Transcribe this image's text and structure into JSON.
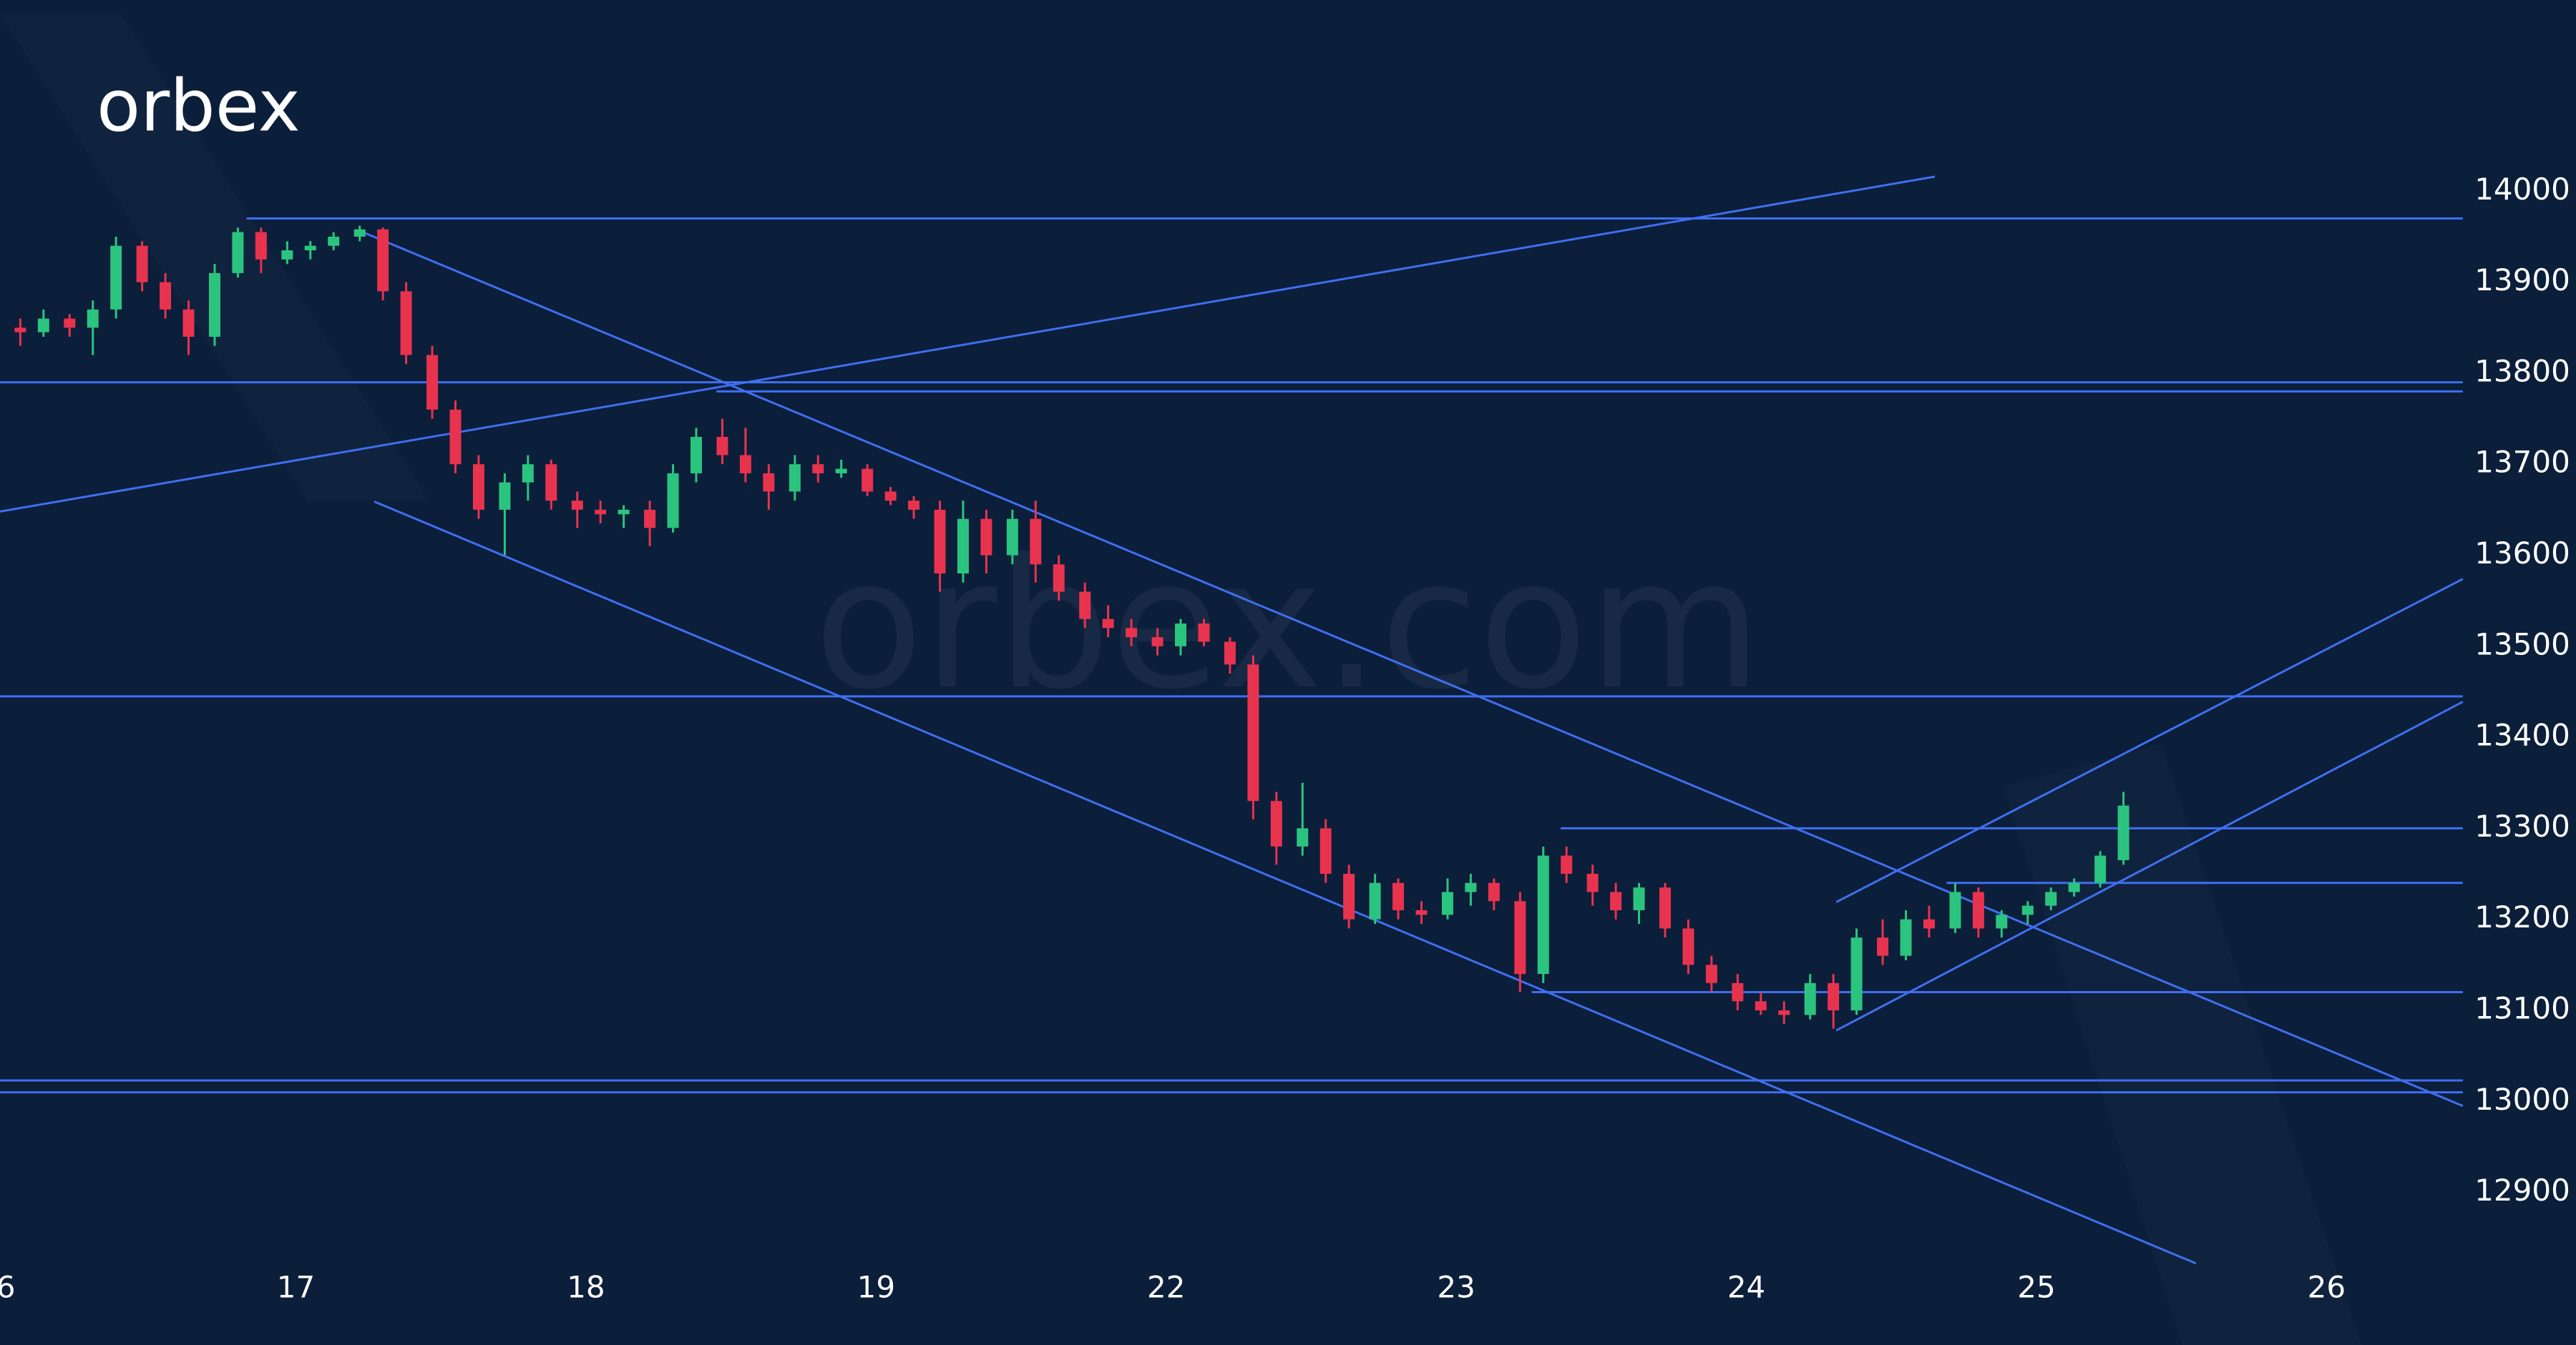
{
  "logo": "orbex",
  "watermark": "orbex.com",
  "chart_data": {
    "type": "candlestick",
    "up_color": "#2bc47f",
    "down_color": "#e8334f",
    "line_color": "#3f6ff0",
    "xlim": [
      -0.02,
      8.86
    ],
    "ylim": [
      12840,
      14210
    ],
    "xticks": [
      {
        "value": 0,
        "label": "6"
      },
      {
        "value": 1,
        "label": "17"
      },
      {
        "value": 2,
        "label": "18"
      },
      {
        "value": 3,
        "label": "19"
      },
      {
        "value": 4,
        "label": "22"
      },
      {
        "value": 5,
        "label": "23"
      },
      {
        "value": 6,
        "label": "24"
      },
      {
        "value": 7,
        "label": "25"
      },
      {
        "value": 8,
        "label": "26"
      }
    ],
    "yticks": [
      12900,
      13000,
      13100,
      13200,
      13300,
      13400,
      13500,
      13600,
      13700,
      13800,
      13900,
      14000
    ],
    "x": [
      0.05,
      0.13,
      0.22,
      0.3,
      0.38,
      0.47,
      0.55,
      0.63,
      0.72,
      0.8,
      0.88,
      0.97,
      1.05,
      1.13,
      1.22,
      1.3,
      1.38,
      1.47,
      1.55,
      1.63,
      1.72,
      1.8,
      1.88,
      1.97,
      2.05,
      2.13,
      2.22,
      2.3,
      2.38,
      2.47,
      2.55,
      2.63,
      2.72,
      2.8,
      2.88,
      2.97,
      3.05,
      3.13,
      3.22,
      3.3,
      3.38,
      3.47,
      3.55,
      3.63,
      3.72,
      3.8,
      3.88,
      3.97,
      4.05,
      4.13,
      4.22,
      4.3,
      4.38,
      4.47,
      4.55,
      4.63,
      4.72,
      4.8,
      4.88,
      4.97,
      5.05,
      5.13,
      5.22,
      5.3,
      5.38,
      5.47,
      5.55,
      5.63,
      5.72,
      5.8,
      5.88,
      5.97,
      6.05,
      6.13,
      6.22,
      6.3,
      6.38,
      6.47,
      6.55,
      6.63,
      6.72,
      6.8,
      6.88,
      6.97,
      7.05,
      7.13,
      7.22,
      7.3
    ],
    "open": [
      13850,
      13845,
      13860,
      13850,
      13870,
      13940,
      13900,
      13870,
      13840,
      13910,
      13955,
      13925,
      13935,
      13940,
      13950,
      13958,
      13890,
      13820,
      13760,
      13700,
      13650,
      13680,
      13700,
      13660,
      13650,
      13645,
      13650,
      13630,
      13690,
      13730,
      13710,
      13690,
      13670,
      13700,
      13690,
      13695,
      13670,
      13660,
      13650,
      13580,
      13640,
      13600,
      13640,
      13590,
      13560,
      13530,
      13520,
      13510,
      13500,
      13525,
      13505,
      13480,
      13330,
      13280,
      13300,
      13250,
      13200,
      13240,
      13210,
      13205,
      13230,
      13240,
      13220,
      13140,
      13270,
      13250,
      13230,
      13210,
      13235,
      13190,
      13150,
      13130,
      13110,
      13100,
      13095,
      13130,
      13100,
      13180,
      13160,
      13200,
      13190,
      13230,
      13190,
      13205,
      13215,
      13230,
      13240,
      13265
    ],
    "high": [
      13860,
      13870,
      13865,
      13880,
      13950,
      13945,
      13910,
      13880,
      13920,
      13960,
      13960,
      13945,
      13945,
      13955,
      13962,
      13960,
      13900,
      13830,
      13770,
      13710,
      13690,
      13710,
      13705,
      13670,
      13660,
      13655,
      13660,
      13700,
      13740,
      13750,
      13740,
      13700,
      13710,
      13710,
      13705,
      13700,
      13675,
      13665,
      13660,
      13660,
      13650,
      13650,
      13660,
      13600,
      13570,
      13545,
      13530,
      13520,
      13530,
      13530,
      13510,
      13490,
      13340,
      13350,
      13310,
      13260,
      13250,
      13245,
      13220,
      13245,
      13250,
      13245,
      13230,
      13280,
      13280,
      13260,
      13240,
      13240,
      13240,
      13200,
      13160,
      13140,
      13120,
      13110,
      13140,
      13140,
      13190,
      13200,
      13210,
      13215,
      13240,
      13235,
      13210,
      13220,
      13235,
      13245,
      13275,
      13340
    ],
    "low": [
      13830,
      13840,
      13840,
      13820,
      13860,
      13890,
      13860,
      13820,
      13830,
      13905,
      13910,
      13920,
      13925,
      13935,
      13945,
      13880,
      13810,
      13750,
      13690,
      13640,
      13600,
      13660,
      13650,
      13630,
      13635,
      13630,
      13610,
      13625,
      13680,
      13700,
      13680,
      13650,
      13660,
      13680,
      13685,
      13665,
      13655,
      13640,
      13560,
      13570,
      13580,
      13590,
      13570,
      13550,
      13520,
      13510,
      13500,
      13490,
      13490,
      13500,
      13470,
      13310,
      13260,
      13270,
      13240,
      13190,
      13195,
      13200,
      13195,
      13200,
      13215,
      13210,
      13120,
      13130,
      13240,
      13215,
      13200,
      13195,
      13180,
      13140,
      13120,
      13100,
      13095,
      13085,
      13090,
      13080,
      13095,
      13150,
      13155,
      13180,
      13185,
      13180,
      13180,
      13195,
      13210,
      13225,
      13235,
      13260
    ],
    "close": [
      13845,
      13860,
      13850,
      13870,
      13940,
      13900,
      13870,
      13840,
      13910,
      13955,
      13925,
      13935,
      13940,
      13950,
      13958,
      13890,
      13820,
      13760,
      13700,
      13650,
      13680,
      13700,
      13660,
      13650,
      13645,
      13650,
      13630,
      13690,
      13730,
      13710,
      13690,
      13670,
      13700,
      13690,
      13695,
      13670,
      13660,
      13650,
      13580,
      13640,
      13600,
      13640,
      13590,
      13560,
      13530,
      13520,
      13510,
      13500,
      13525,
      13505,
      13480,
      13330,
      13280,
      13300,
      13250,
      13200,
      13240,
      13210,
      13205,
      13230,
      13240,
      13220,
      13140,
      13270,
      13250,
      13230,
      13210,
      13235,
      13190,
      13150,
      13130,
      13110,
      13100,
      13095,
      13130,
      13100,
      13180,
      13160,
      13200,
      13190,
      13230,
      13190,
      13205,
      13215,
      13230,
      13240,
      13270,
      13325
    ],
    "lines": [
      {
        "x": [
          0.83,
          8.47
        ],
        "y": [
          13970,
          13970
        ]
      },
      {
        "x": [
          -0.02,
          8.47
        ],
        "y": [
          13790,
          13790
        ]
      },
      {
        "x": [
          2.45,
          8.47
        ],
        "y": [
          13780,
          13780
        ]
      },
      {
        "x": [
          -0.02,
          8.47
        ],
        "y": [
          13445,
          13445
        ]
      },
      {
        "x": [
          5.36,
          8.47
        ],
        "y": [
          13300,
          13300
        ]
      },
      {
        "x": [
          6.69,
          8.47
        ],
        "y": [
          13240,
          13240
        ]
      },
      {
        "x": [
          5.26,
          8.47
        ],
        "y": [
          13120,
          13120
        ]
      },
      {
        "x": [
          -0.02,
          8.47
        ],
        "y": [
          13023,
          13023
        ]
      },
      {
        "x": [
          -0.02,
          8.47
        ],
        "y": [
          13010,
          13010
        ]
      },
      {
        "x": [
          -0.02,
          6.65
        ],
        "y": [
          13648,
          14016
        ]
      },
      {
        "x": [
          1.23,
          8.47
        ],
        "y": [
          13955,
          12995
        ]
      },
      {
        "x": [
          1.27,
          7.55
        ],
        "y": [
          13659,
          12822
        ]
      },
      {
        "x": [
          6.31,
          8.47
        ],
        "y": [
          13219,
          13574
        ]
      },
      {
        "x": [
          6.31,
          8.47
        ],
        "y": [
          13078,
          13439
        ]
      }
    ]
  }
}
